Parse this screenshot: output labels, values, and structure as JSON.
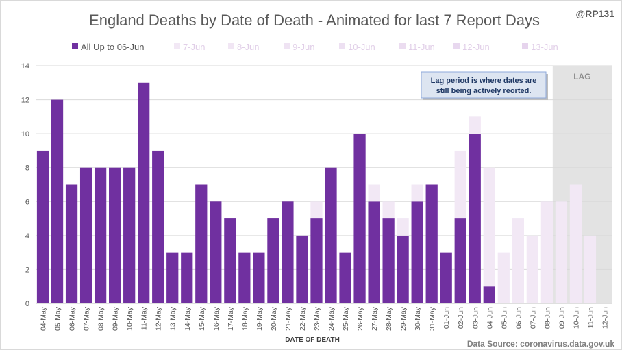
{
  "handle": "@RP131",
  "source": "Data Source: coronavirus.data.gov.uk",
  "lag_label": "LAG",
  "annotation": [
    "Lag period is where dates are",
    "still being actively reorted."
  ],
  "colors": {
    "base": "#7030a0",
    "layers": [
      "#f2e8f5",
      "#f1e6f4",
      "#efe3f3",
      "#ede0f2",
      "#ebdcf0",
      "#e8d8ef",
      "#e6d4ed"
    ],
    "lag_band": "#e3e3e3",
    "grid": "#d9d9d9",
    "note_bg": "#dde5f1",
    "note_border": "#8ea9db"
  },
  "chart_data": {
    "type": "bar",
    "stacked": true,
    "title": "England Deaths by Date of Death - Animated for last 7 Report Days",
    "xlabel": "DATE OF DEATH",
    "ylabel": "",
    "ylim": [
      0,
      14
    ],
    "yticks": [
      0,
      2,
      4,
      6,
      8,
      10,
      12,
      14
    ],
    "grid": true,
    "legend": "top",
    "lag_categories": [
      "09-Jun",
      "10-Jun",
      "11-Jun",
      "12-Jun"
    ],
    "categories": [
      "04-May",
      "05-May",
      "06-May",
      "07-May",
      "08-May",
      "09-May",
      "10-May",
      "11-May",
      "12-May",
      "13-May",
      "14-May",
      "15-May",
      "16-May",
      "17-May",
      "18-May",
      "19-May",
      "20-May",
      "21-May",
      "22-May",
      "23-May",
      "24-May",
      "25-May",
      "26-May",
      "27-May",
      "28-May",
      "29-May",
      "30-May",
      "31-May",
      "01-Jun",
      "02-Jun",
      "03-Jun",
      "04-Jun",
      "05-Jun",
      "06-Jun",
      "07-Jun",
      "08-Jun",
      "09-Jun",
      "10-Jun",
      "11-Jun",
      "12-Jun"
    ],
    "series": [
      {
        "name": "All Up to 06-Jun",
        "values": [
          9,
          12,
          7,
          8,
          8,
          8,
          8,
          13,
          9,
          3,
          3,
          7,
          6,
          5,
          3,
          3,
          5,
          6,
          4,
          5,
          8,
          3,
          10,
          6,
          5,
          4,
          6,
          7,
          3,
          5,
          10,
          1,
          0,
          0,
          0,
          0,
          0,
          0,
          0,
          0
        ]
      },
      {
        "name": "7-Jun",
        "values": [
          0,
          0,
          0,
          0,
          0,
          0,
          0,
          0,
          0,
          0,
          0,
          0,
          0,
          0,
          0,
          0,
          0,
          0,
          0,
          1,
          0,
          0,
          0,
          1,
          1,
          1,
          1,
          0,
          0,
          4,
          1,
          7,
          3,
          5,
          4,
          6,
          6,
          7,
          4,
          0
        ]
      },
      {
        "name": "8-Jun",
        "values": [
          0,
          0,
          0,
          0,
          0,
          0,
          0,
          0,
          0,
          0,
          0,
          0,
          0,
          0,
          0,
          0,
          0,
          0,
          0,
          0,
          0,
          0,
          0,
          0,
          0,
          0,
          0,
          0,
          0,
          0,
          0,
          0,
          0,
          0,
          0,
          0,
          0,
          0,
          0,
          0
        ]
      },
      {
        "name": "9-Jun",
        "values": [
          0,
          0,
          0,
          0,
          0,
          0,
          0,
          0,
          0,
          0,
          0,
          0,
          0,
          0,
          0,
          0,
          0,
          0,
          0,
          0,
          0,
          0,
          0,
          0,
          0,
          0,
          0,
          0,
          0,
          0,
          0,
          0,
          0,
          0,
          0,
          0,
          0,
          0,
          0,
          0
        ]
      },
      {
        "name": "10-Jun",
        "values": [
          0,
          0,
          0,
          0,
          0,
          0,
          0,
          0,
          0,
          0,
          0,
          0,
          0,
          0,
          0,
          0,
          0,
          0,
          0,
          0,
          0,
          0,
          0,
          0,
          0,
          0,
          0,
          0,
          0,
          0,
          0,
          0,
          0,
          0,
          0,
          0,
          0,
          0,
          0,
          0
        ]
      },
      {
        "name": "11-Jun",
        "values": [
          0,
          0,
          0,
          0,
          0,
          0,
          0,
          0,
          0,
          0,
          0,
          0,
          0,
          0,
          0,
          0,
          0,
          0,
          0,
          0,
          0,
          0,
          0,
          0,
          0,
          0,
          0,
          0,
          0,
          0,
          0,
          0,
          0,
          0,
          0,
          0,
          0,
          0,
          0,
          0
        ]
      },
      {
        "name": "12-Jun",
        "values": [
          0,
          0,
          0,
          0,
          0,
          0,
          0,
          0,
          0,
          0,
          0,
          0,
          0,
          0,
          0,
          0,
          0,
          0,
          0,
          0,
          0,
          0,
          0,
          0,
          0,
          0,
          0,
          0,
          0,
          0,
          0,
          0,
          0,
          0,
          0,
          0,
          0,
          0,
          0,
          0
        ]
      },
      {
        "name": "13-Jun",
        "values": [
          0,
          0,
          0,
          0,
          0,
          0,
          0,
          0,
          0,
          0,
          0,
          0,
          0,
          0,
          0,
          0,
          0,
          0,
          0,
          0,
          0,
          0,
          0,
          0,
          0,
          0,
          0,
          0,
          0,
          0,
          0,
          0,
          0,
          0,
          0,
          0,
          0,
          0,
          0,
          0
        ]
      }
    ]
  }
}
